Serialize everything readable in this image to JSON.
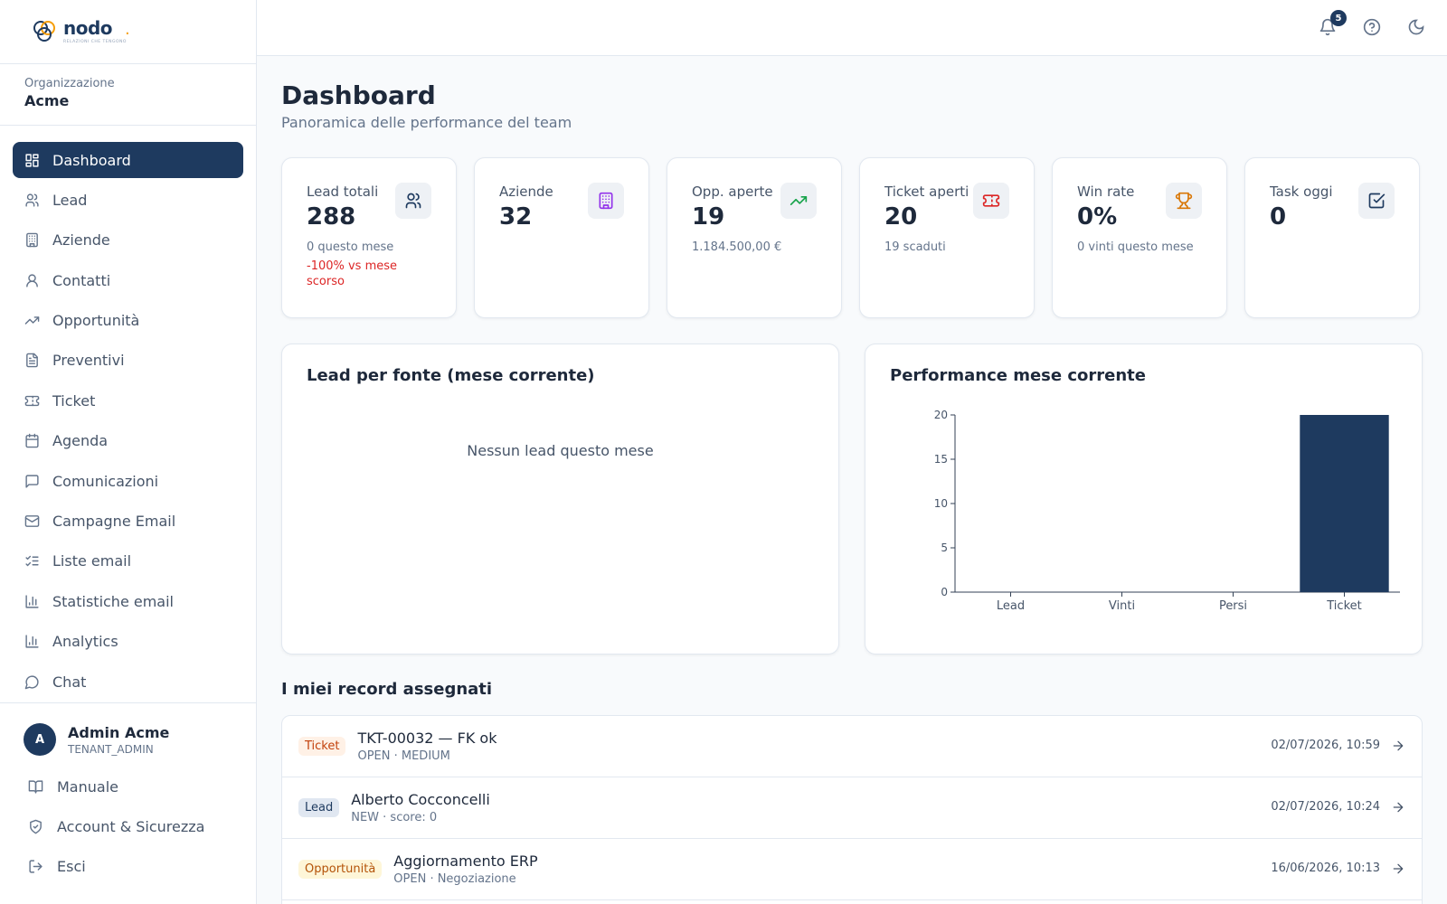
{
  "brand": {
    "name": "nodo",
    "tagline": "RELAZIONI CHE TENGONO"
  },
  "org": {
    "label": "Organizzazione",
    "name": "Acme"
  },
  "nav": [
    {
      "label": "Dashboard",
      "icon": "dashboard-icon",
      "active": true
    },
    {
      "label": "Lead",
      "icon": "users-icon"
    },
    {
      "label": "Aziende",
      "icon": "building-icon"
    },
    {
      "label": "Contatti",
      "icon": "user-icon"
    },
    {
      "label": "Opportunità",
      "icon": "trending-up-icon"
    },
    {
      "label": "Preventivi",
      "icon": "file-icon"
    },
    {
      "label": "Ticket",
      "icon": "ticket-icon"
    },
    {
      "label": "Agenda",
      "icon": "calendar-icon"
    },
    {
      "label": "Comunicazioni",
      "icon": "message-icon"
    },
    {
      "label": "Campagne Email",
      "icon": "mail-icon"
    },
    {
      "label": "Liste email",
      "icon": "list-checks-icon"
    },
    {
      "label": "Statistiche email",
      "icon": "bar-chart-icon"
    },
    {
      "label": "Analytics",
      "icon": "bar-chart-icon"
    },
    {
      "label": "Chat",
      "icon": "chat-icon"
    }
  ],
  "user": {
    "initial": "A",
    "name": "Admin Acme",
    "role": "TENANT_ADMIN"
  },
  "bottom_nav": [
    {
      "label": "Manuale",
      "icon": "book-icon"
    },
    {
      "label": "Account & Sicurezza",
      "icon": "shield-icon"
    },
    {
      "label": "Esci",
      "icon": "logout-icon"
    }
  ],
  "topbar": {
    "notifications_count": "5"
  },
  "page": {
    "title": "Dashboard",
    "subtitle": "Panoramica delle performance del team"
  },
  "kpis": [
    {
      "label": "Lead totali",
      "value": "288",
      "sub": "0 questo mese",
      "warn": "-100% vs mese scorso",
      "icon": "users-icon",
      "icon_color": "#1e3a5f"
    },
    {
      "label": "Aziende",
      "value": "32",
      "sub": "",
      "warn": "",
      "icon": "building-icon",
      "icon_color": "#9333ea"
    },
    {
      "label": "Opp. aperte",
      "value": "19",
      "sub": "1.184.500,00 €",
      "warn": "",
      "icon": "trending-up-icon",
      "icon_color": "#16a34a"
    },
    {
      "label": "Ticket aperti",
      "value": "20",
      "sub": "19 scaduti",
      "warn": "",
      "icon": "ticket-icon",
      "icon_color": "#dc2626"
    },
    {
      "label": "Win rate",
      "value": "0%",
      "sub": "0 vinti questo mese",
      "warn": "",
      "icon": "trophy-icon",
      "icon_color": "#d97706"
    },
    {
      "label": "Task oggi",
      "value": "0",
      "sub": "",
      "warn": "",
      "icon": "check-square-icon",
      "icon_color": "#1e3a5f"
    }
  ],
  "lead_panel": {
    "title": "Lead per fonte (mese corrente)",
    "empty": "Nessun lead questo mese"
  },
  "perf_panel": {
    "title": "Performance mese corrente"
  },
  "chart_data": {
    "type": "bar",
    "title": "Performance mese corrente",
    "categories": [
      "Lead",
      "Vinti",
      "Persi",
      "Ticket"
    ],
    "values": [
      0,
      0,
      0,
      20
    ],
    "ylim": [
      0,
      20
    ],
    "yticks": [
      "0",
      "5",
      "10",
      "15",
      "20"
    ],
    "color": "#1e3a5f",
    "xlabel": "",
    "ylabel": ""
  },
  "records": {
    "title": "I miei record assegnati",
    "items": [
      {
        "tag": "Ticket",
        "kind": "ticket",
        "title": "TKT-00032 — FK ok",
        "meta": "OPEN · MEDIUM",
        "date": "02/07/2026, 10:59"
      },
      {
        "tag": "Lead",
        "kind": "lead",
        "title": "Alberto Cocconcelli",
        "meta": "NEW · score: 0",
        "date": "02/07/2026, 10:24"
      },
      {
        "tag": "Opportunità",
        "kind": "opp",
        "title": "Aggiornamento ERP",
        "meta": "OPEN · Negoziazione",
        "date": "16/06/2026, 10:13"
      }
    ]
  }
}
